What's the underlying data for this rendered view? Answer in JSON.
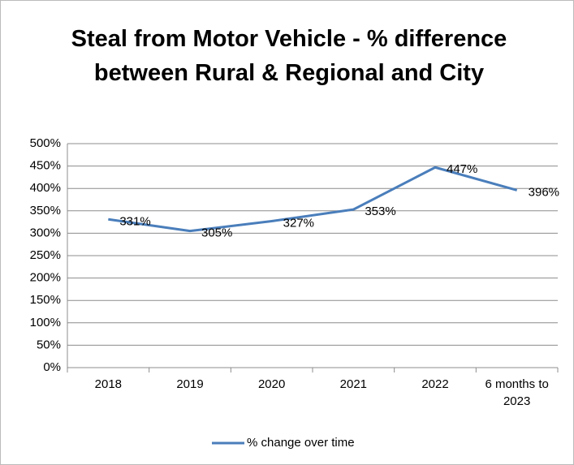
{
  "chart_data": {
    "type": "line",
    "title": "Steal from Motor Vehicle - % difference between Rural & Regional and City",
    "categories": [
      "2018",
      "2019",
      "2020",
      "2021",
      "2022",
      "6 months to 2023"
    ],
    "series": [
      {
        "name": "% change over time",
        "color": "#4a7ebb",
        "values": [
          331,
          305,
          327,
          353,
          447,
          396
        ],
        "value_labels": [
          "331%",
          "305%",
          "327%",
          "353%",
          "447%",
          "396%"
        ]
      }
    ],
    "ylim": [
      0,
      500
    ],
    "yticks": [
      {
        "value": 0,
        "label": "0%"
      },
      {
        "value": 50,
        "label": "50%"
      },
      {
        "value": 100,
        "label": "100%"
      },
      {
        "value": 150,
        "label": "150%"
      },
      {
        "value": 200,
        "label": "200%"
      },
      {
        "value": 250,
        "label": "250%"
      },
      {
        "value": 300,
        "label": "300%"
      },
      {
        "value": 350,
        "label": "350%"
      },
      {
        "value": 400,
        "label": "400%"
      },
      {
        "value": 450,
        "label": "450%"
      },
      {
        "value": 500,
        "label": "500%"
      }
    ],
    "grid": true,
    "legend": "bottom"
  }
}
